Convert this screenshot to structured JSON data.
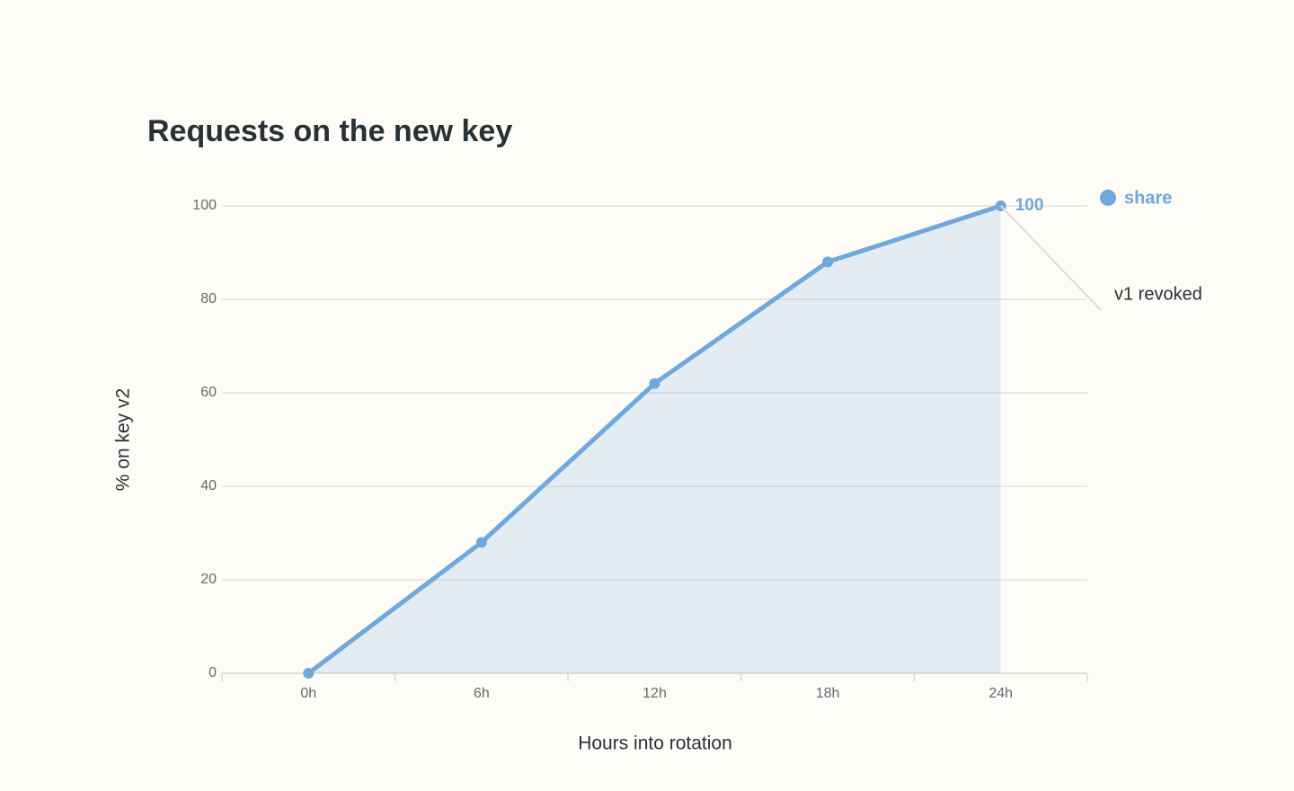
{
  "chart_data": {
    "type": "line",
    "title": "Requests on the new key",
    "x_label": "Hours into rotation",
    "y_label": "% on key v2",
    "categories": [
      "0h",
      "6h",
      "12h",
      "18h",
      "24h"
    ],
    "series": [
      {
        "name": "share",
        "color": "#6fa8dc",
        "values": [
          0,
          28,
          62,
          88,
          100
        ]
      }
    ],
    "ylim": [
      0,
      100
    ],
    "yticks": [
      0,
      20,
      40,
      60,
      80,
      100
    ],
    "grid": true,
    "area": true,
    "legend": "top-right",
    "annotation": "v1 revoked"
  }
}
